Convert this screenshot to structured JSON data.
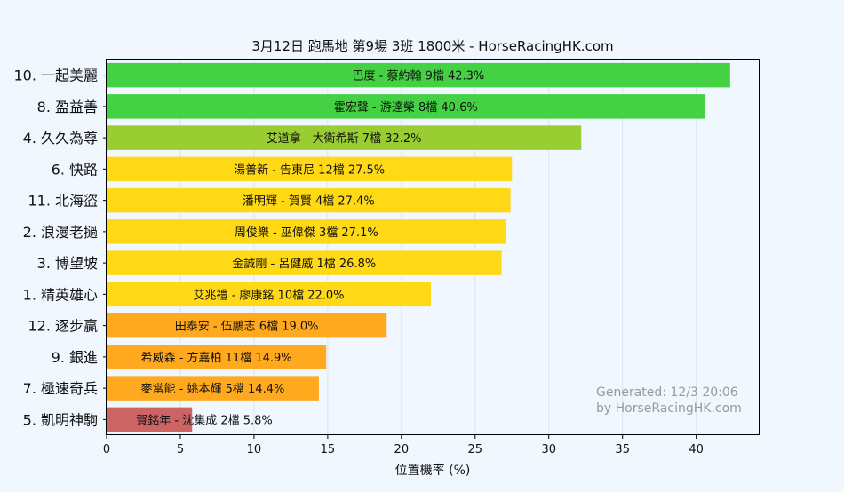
{
  "chart_data": {
    "type": "bar",
    "orientation": "horizontal",
    "title": "3月12日  跑馬地  第9場  3班  1800米 - HorseRacingHK.com",
    "xlabel": "位置機率 (%)",
    "ylabel": "",
    "xlim": [
      0,
      44.3
    ],
    "xticks": [
      0,
      5,
      10,
      15,
      20,
      25,
      30,
      35,
      40
    ],
    "grid": "vertical",
    "watermark": [
      "Generated: 12/3 20:06",
      "by HorseRacingHK.com"
    ],
    "watermark_placement": "bottom-right",
    "categories": [
      "10. 一起美麗",
      "8. 盈益善",
      "4. 久久為尊",
      "6. 快路",
      "11. 北海盜",
      "2. 浪漫老撾",
      "3. 博望坡",
      "1. 精英雄心",
      "12. 逐步贏",
      "9. 銀進",
      "7. 極速奇兵",
      "5. 凱明神駒"
    ],
    "values": [
      42.3,
      40.6,
      32.2,
      27.5,
      27.4,
      27.1,
      26.8,
      22.0,
      19.0,
      14.9,
      14.4,
      5.8
    ],
    "bar_labels": [
      "巴度 - 蔡約翰 9檔  42.3%",
      "霍宏聲 - 游達榮 8檔  40.6%",
      "艾道拿 - 大衛希斯 7檔  32.2%",
      "湯普新 - 告東尼 12檔  27.5%",
      "潘明輝 - 賀賢 4檔  27.4%",
      "周俊樂 - 巫偉傑 3檔  27.1%",
      "金誠剛 - 呂健威 1檔  26.8%",
      "艾兆禮 - 廖康銘 10檔  22.0%",
      "田泰安 - 伍鵬志 6檔  19.0%",
      "希威森 - 方嘉柏 11檔  14.9%",
      "麥當能 - 姚本輝 5檔  14.4%",
      "賀銘年 - 沈集成 2檔  5.8%"
    ],
    "colors": [
      "#44d144",
      "#44d144",
      "#9acd32",
      "#ffd915",
      "#ffd915",
      "#ffd915",
      "#ffd915",
      "#ffd915",
      "#ffaa1e",
      "#ffaa1e",
      "#ffaa1e",
      "#cd6464"
    ]
  },
  "colors": {
    "background": "#f0f7ff",
    "grid": "#dde3ea",
    "axis": "#000000",
    "watermark": "#9a9a9a"
  }
}
